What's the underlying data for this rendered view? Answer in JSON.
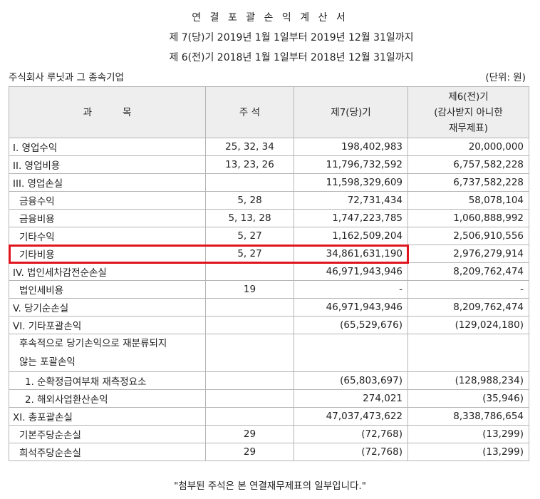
{
  "header": {
    "title": "연 결 포 괄 손 익 계 산 서",
    "period_current": "제 7(당)기 2019년 1월 1일부터 2019년 12월 31일까지",
    "period_prior": "제 6(전)기 2018년 1월 1일부터 2018년 12월 31일까지",
    "company": "주식회사 루닛과 그 종속기업",
    "unit": "(단위: 원)"
  },
  "table": {
    "columns": [
      "과          목",
      "주 석",
      "제7(당)기",
      "제6(전)기\n(감사받지 아니한\n재무제표)"
    ],
    "rows": [
      {
        "item": "I. 영업수익",
        "note": "25, 32, 34",
        "current": "198,402,983",
        "prior": "20,000,000",
        "indent": 0
      },
      {
        "item": "II. 영업비용",
        "note": "13, 23, 26",
        "current": "11,796,732,592",
        "prior": "6,757,582,228",
        "indent": 0
      },
      {
        "item": "III. 영업손실",
        "note": "",
        "current": "11,598,329,609",
        "prior": "6,737,582,228",
        "indent": 0
      },
      {
        "item": "금융수익",
        "note": "5, 28",
        "current": "72,731,434",
        "prior": "58,078,104",
        "indent": 1
      },
      {
        "item": "금융비용",
        "note": "5, 13, 28",
        "current": "1,747,223,785",
        "prior": "1,060,888,992",
        "indent": 1
      },
      {
        "item": "기타수익",
        "note": "5, 27",
        "current": "1,162,509,204",
        "prior": "2,506,910,556",
        "indent": 1
      },
      {
        "item": "기타비용",
        "note": "5, 27",
        "current": "34,861,631,190",
        "prior": "2,976,279,914",
        "indent": 1
      },
      {
        "item": "IV. 법인세차감전순손실",
        "note": "",
        "current": "46,971,943,946",
        "prior": "8,209,762,474",
        "indent": 0
      },
      {
        "item": "법인세비용",
        "note": "19",
        "current": "-",
        "prior": "-",
        "indent": 1
      },
      {
        "item": "V. 당기순손실",
        "note": "",
        "current": "46,971,943,946",
        "prior": "8,209,762,474",
        "indent": 0
      },
      {
        "item": "VI. 기타포괄손익",
        "note": "",
        "current": "(65,529,676)",
        "prior": "(129,024,180)",
        "indent": 0
      },
      {
        "item": "후속적으로 당기손익으로 재분류되지\n않는 포괄손익",
        "note": "",
        "current": "",
        "prior": "",
        "indent": 1
      },
      {
        "item": "1. 순확정급여부채 재측정요소",
        "note": "",
        "current": "(65,803,697)",
        "prior": "(128,988,234)",
        "indent": 2
      },
      {
        "item": "2. 해외사업환산손익",
        "note": "",
        "current": "274,021",
        "prior": "(35,946)",
        "indent": 2
      },
      {
        "item": "XI. 총포괄손실",
        "note": "",
        "current": "47,037,473,622",
        "prior": "8,338,786,654",
        "indent": 0
      },
      {
        "item": "기본주당순손실",
        "note": "29",
        "current": "(72,768)",
        "prior": "(13,299)",
        "indent": 1
      },
      {
        "item": "희석주당순손실",
        "note": "29",
        "current": "(72,768)",
        "prior": "(13,299)",
        "indent": 1
      }
    ]
  },
  "highlight": {
    "row_index": 6,
    "color": "#e0141e"
  },
  "footnote": "\"첨부된 주석은 본 연결재무제표의 일부입니다.\""
}
